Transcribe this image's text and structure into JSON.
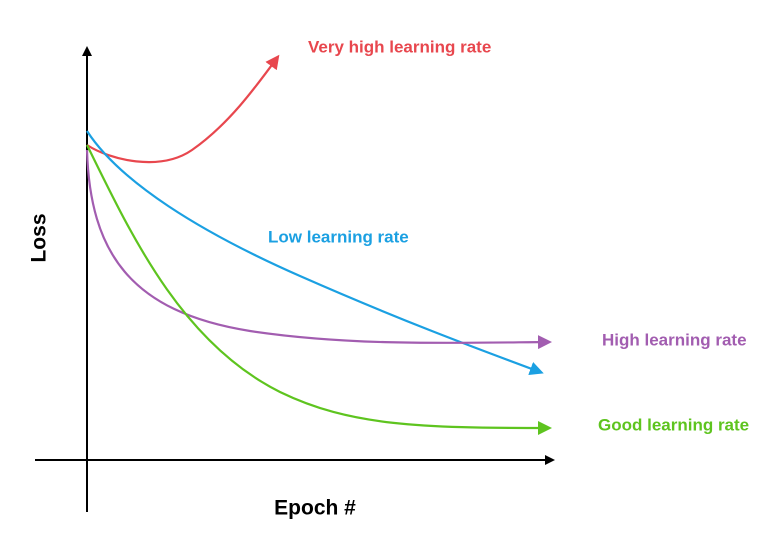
{
  "axes": {
    "y_label": "Loss",
    "x_label": "Epoch #"
  },
  "curves": [
    {
      "label": "Very high learning rate"
    },
    {
      "label": "Low learning rate"
    },
    {
      "label": "High learning rate"
    },
    {
      "label": "Good learning rate"
    }
  ]
}
